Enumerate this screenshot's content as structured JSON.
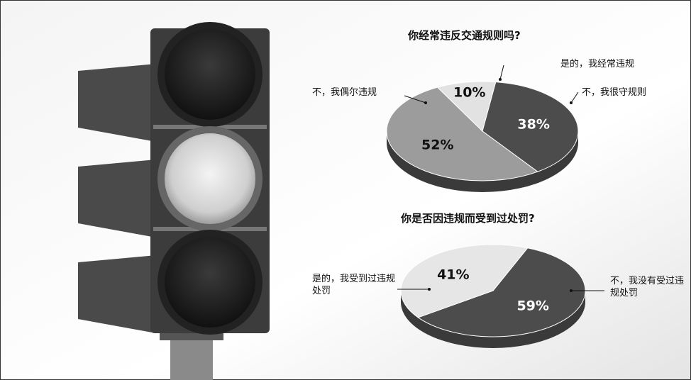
{
  "chart_data": [
    {
      "type": "pie",
      "title": "你经常违反交通规则吗?",
      "categories": [
        "是的，我经常违规",
        "不，我很守规则",
        "不，我偶尔违规"
      ],
      "values": [
        10,
        38,
        52
      ],
      "value_labels": [
        "10%",
        "38%",
        "52%"
      ],
      "colors": [
        "#e2e2e2",
        "#4c4c4c",
        "#9c9c9c"
      ]
    },
    {
      "type": "pie",
      "title": "你是否因违规而受到过处罚?",
      "categories": [
        "不，我没有受过违规处罚",
        "是的，我受到过违规处罚"
      ],
      "values": [
        59,
        41
      ],
      "value_labels": [
        "59%",
        "41%"
      ],
      "colors": [
        "#4c4c4c",
        "#e6e6e6"
      ]
    }
  ]
}
